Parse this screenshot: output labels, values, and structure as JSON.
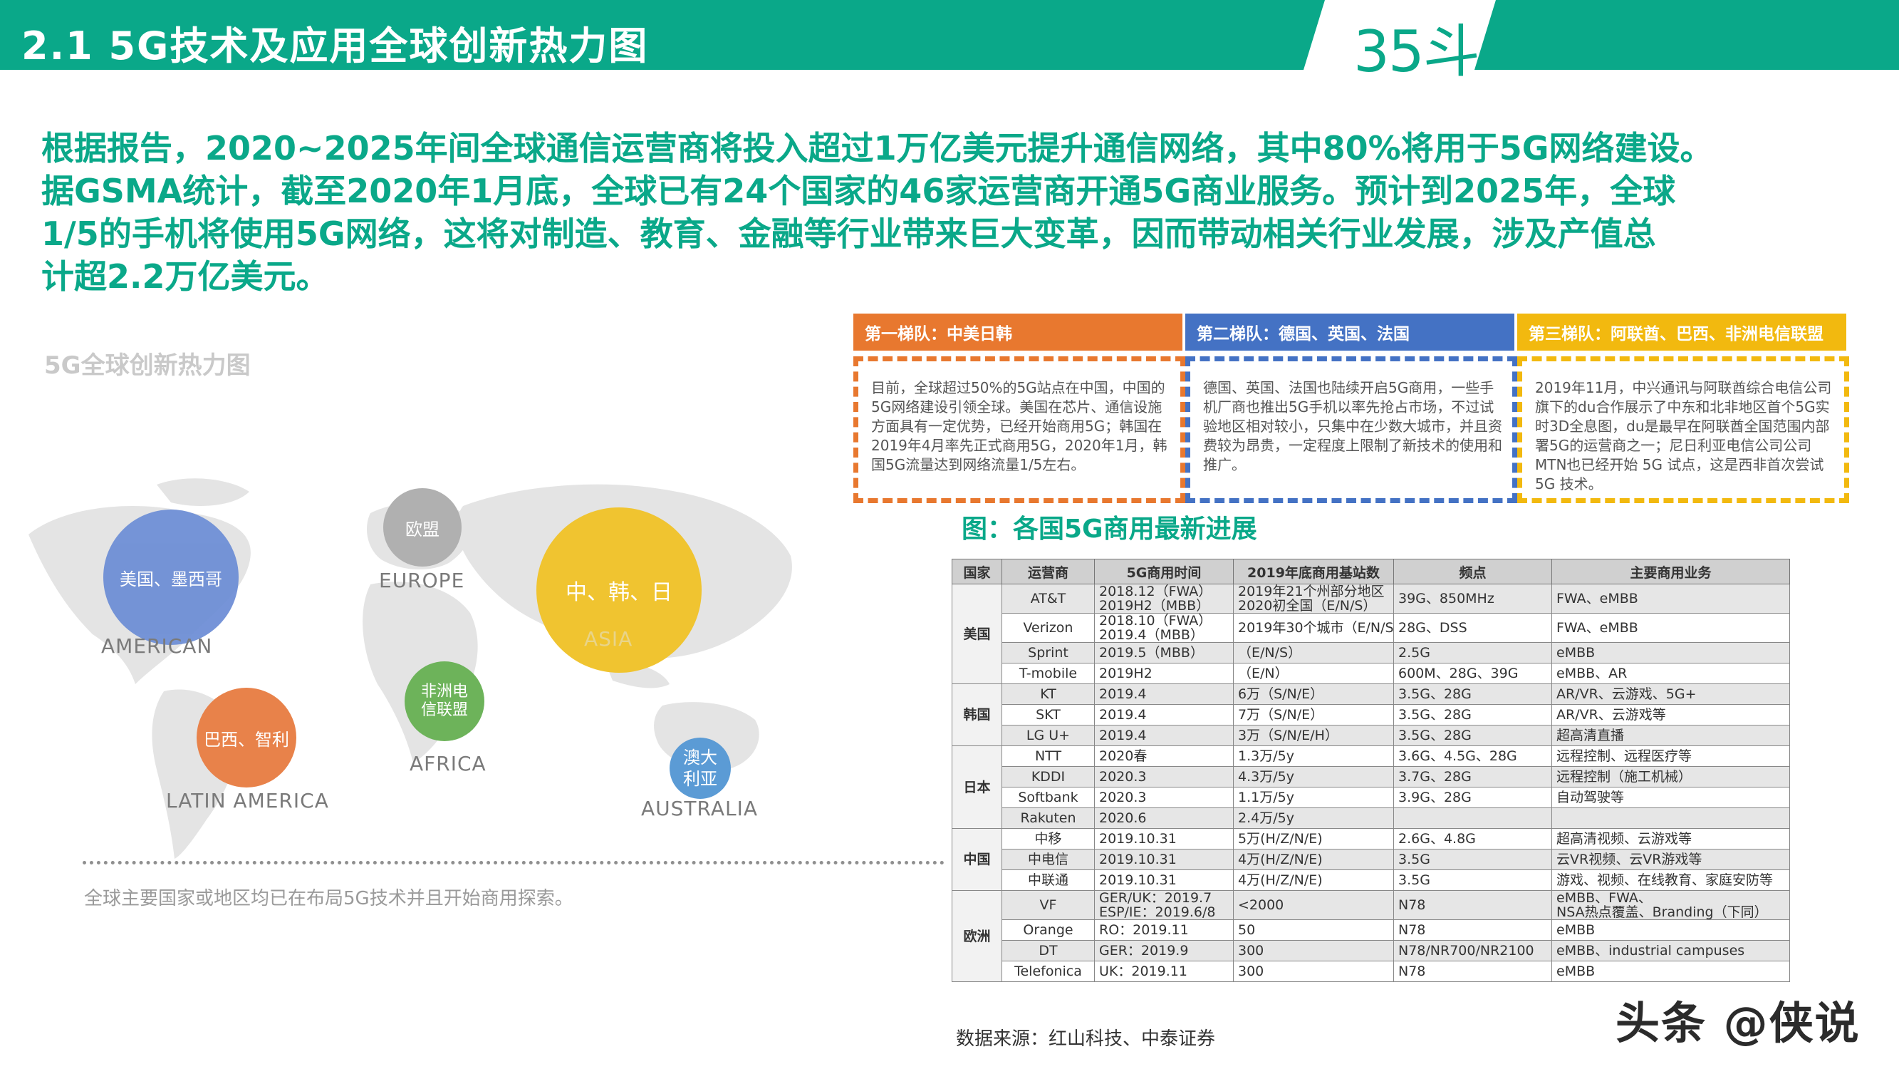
{
  "header": {
    "title": "2.1 5G技术及应用全球创新热力图",
    "logo_text": "35斗"
  },
  "intro": {
    "line1": "根据报告，2020~2025年间全球通信运营商将投入超过1万亿美元提升通信网络，其中80%将用于5G网络建设。",
    "line2": "据GSMA统计，截至2020年1月底，全球已有24个国家的46家运营商开通5G商业服务。预计到2025年，全球",
    "line3": "1/5的手机将使用5G网络，这将对制造、教育、金融等行业带来巨大变革，因而带动相关行业发展，涉及产值总",
    "line4": "计超2.2万亿美元。"
  },
  "map": {
    "title": "5G全球创新热力图",
    "caption": "全球主要国家或地区均已在布局5G技术并且开始商用探索。",
    "bubbles": {
      "america": "美国、墨西哥",
      "europe": "欧盟",
      "asia": "中、韩、日",
      "africa": "非洲电信联盟",
      "latin": "巴西、智利",
      "australia": "澳大利亚"
    },
    "regions": {
      "america": "AMERICAN",
      "europe": "EUROPE",
      "asia": "ASIA",
      "africa": "AFRICA",
      "latin": "LATIN AMERICA",
      "australia": "AUSTRALIA"
    },
    "colors": {
      "america": "#6f8fd6",
      "europe": "#aaaaaa",
      "asia": "#f0c430",
      "africa": "#6db35a",
      "latin": "#e8824a",
      "australia": "#5b9bd5"
    }
  },
  "tiers": [
    {
      "head": "第一梯队：中美日韩",
      "color": "#e8782f",
      "body": "目前，全球超过50%的5G站点在中国，中国的5G网络建设引领全球。美国在芯片、通信设施方面具有一定优势，已经开始商用5G；韩国在2019年4月率先正式商用5G，2020年1月，韩国5G流量达到网络流量1/5左右。"
    },
    {
      "head": "第二梯队：德国、英国、法国",
      "color": "#4472c4",
      "body": "德国、英国、法国也陆续开启5G商用，一些手机厂商也推出5G手机以率先抢占市场，不过试验地区相对较小，只集中在少数大城市，并且资费较为昂贵，一定程度上限制了新技术的使用和推广。"
    },
    {
      "head": "第三梯队：阿联酋、巴西、非洲电信联盟",
      "color": "#f2b90f",
      "body": "2019年11月，中兴通讯与阿联酋综合电信公司旗下的du合作展示了中东和北非地区首个5G实时3D全息图，du是最早在阿联酋全国范围内部署5G的运营商之一；尼日利亚电信公司公司MTN也已经开始 5G 试点，这是西非首次尝试 5G 技术。"
    }
  ],
  "chart_title": "图：各国5G商用最新进展",
  "table": {
    "headers": [
      "国家",
      "运营商",
      "5G商用时间",
      "2019年底商用基站数",
      "频点",
      "主要商用业务"
    ],
    "groups": [
      {
        "country": "美国",
        "rows": [
          [
            "AT&T",
            "2018.12（FWA）\n2019H2（MBB）",
            "2019年21个州部分地区\n2020初全国（E/N/S）",
            "39G、850MHz",
            "FWA、eMBB"
          ],
          [
            "Verizon",
            "2018.10（FWA）\n2019.4（MBB）",
            "2019年30个城市（E/N/S）",
            "28G、DSS",
            "FWA、eMBB"
          ],
          [
            "Sprint",
            "2019.5（MBB）",
            "（E/N/S）",
            "2.5G",
            "eMBB"
          ],
          [
            "T-mobile",
            "2019H2",
            "（E/N）",
            "600M、28G、39G",
            "eMBB、AR"
          ]
        ]
      },
      {
        "country": "韩国",
        "rows": [
          [
            "KT",
            "2019.4",
            "6万（S/N/E）",
            "3.5G、28G",
            "AR/VR、云游戏、5G+"
          ],
          [
            "SKT",
            "2019.4",
            "7万（S/N/E）",
            "3.5G、28G",
            "AR/VR、云游戏等"
          ],
          [
            "LG U+",
            "2019.4",
            "3万（S/N/E/H）",
            "3.5G、28G",
            "超高清直播"
          ]
        ]
      },
      {
        "country": "日本",
        "rows": [
          [
            "NTT",
            "2020春",
            "1.3万/5y",
            "3.6G、4.5G、28G",
            "远程控制、远程医疗等"
          ],
          [
            "KDDI",
            "2020.3",
            "4.3万/5y",
            "3.7G、28G",
            "远程控制（施工机械）"
          ],
          [
            "Softbank",
            "2020.3",
            "1.1万/5y",
            "3.9G、28G",
            "自动驾驶等"
          ],
          [
            "Rakuten",
            "2020.6",
            "2.4万/5y",
            "",
            ""
          ]
        ]
      },
      {
        "country": "中国",
        "rows": [
          [
            "中移",
            "2019.10.31",
            "5万(H/Z/N/E)",
            "2.6G、4.8G",
            "超高清视频、云游戏等"
          ],
          [
            "中电信",
            "2019.10.31",
            "4万(H/Z/N/E)",
            "3.5G",
            "云VR视频、云VR游戏等"
          ],
          [
            "中联通",
            "2019.10.31",
            "4万(H/Z/N/E)",
            "3.5G",
            "游戏、视频、在线教育、家庭安防等"
          ]
        ]
      },
      {
        "country": "欧洲",
        "rows": [
          [
            "VF",
            "GER/UK：2019.7\nESP/IE：2019.6/8",
            "<2000",
            "N78",
            "eMBB、FWA、\nNSA热点覆盖、Branding（下同）"
          ],
          [
            "Orange",
            "RO：2019.11",
            "50",
            "N78",
            "eMBB"
          ],
          [
            "DT",
            "GER：2019.9",
            "300",
            "N78/NR700/NR2100",
            "eMBB、industrial campuses"
          ],
          [
            "Telefonica",
            "UK：2019.11",
            "300",
            "N78",
            "eMBB"
          ]
        ]
      }
    ]
  },
  "source": "数据来源：红山科技、中泰证券",
  "watermark": "头条 @侠说"
}
